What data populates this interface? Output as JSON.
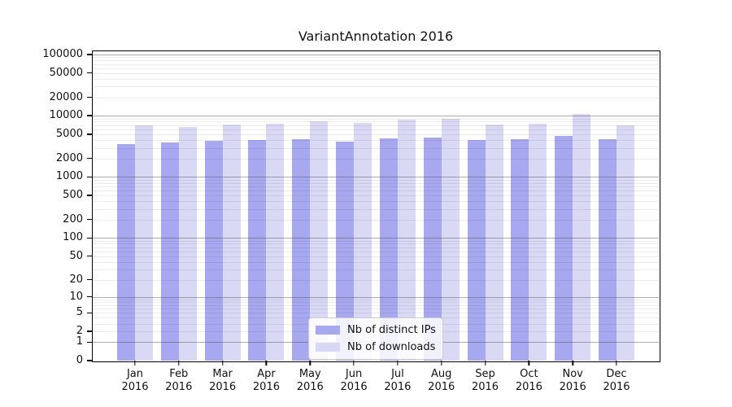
{
  "chart_data": {
    "type": "bar",
    "title": "VariantAnnotation 2016",
    "year": "2016",
    "categories": [
      "Jan",
      "Feb",
      "Mar",
      "Apr",
      "May",
      "Jun",
      "Jul",
      "Aug",
      "Sep",
      "Oct",
      "Nov",
      "Dec"
    ],
    "series": [
      {
        "name": "Nb of distinct IPs",
        "color": "#a8a8f0",
        "values": [
          3490,
          3670,
          3900,
          4060,
          4190,
          3820,
          4300,
          4400,
          4060,
          4190,
          4740,
          4190
        ]
      },
      {
        "name": "Nb of downloads",
        "color": "#d9d9f6",
        "values": [
          7010,
          6570,
          7160,
          7310,
          8140,
          7580,
          8730,
          8840,
          7230,
          7380,
          10620,
          6890
        ]
      }
    ],
    "yscale": "log1p",
    "ylim": [
      0,
      100000
    ],
    "y_ticks": [
      100000,
      50000,
      20000,
      10000,
      5000,
      2000,
      1000,
      500,
      200,
      100,
      50,
      20,
      10,
      5,
      2,
      1,
      0
    ],
    "xlabel": "",
    "ylabel": "",
    "grid": "horizontal",
    "legend_position": "bottom-center"
  }
}
